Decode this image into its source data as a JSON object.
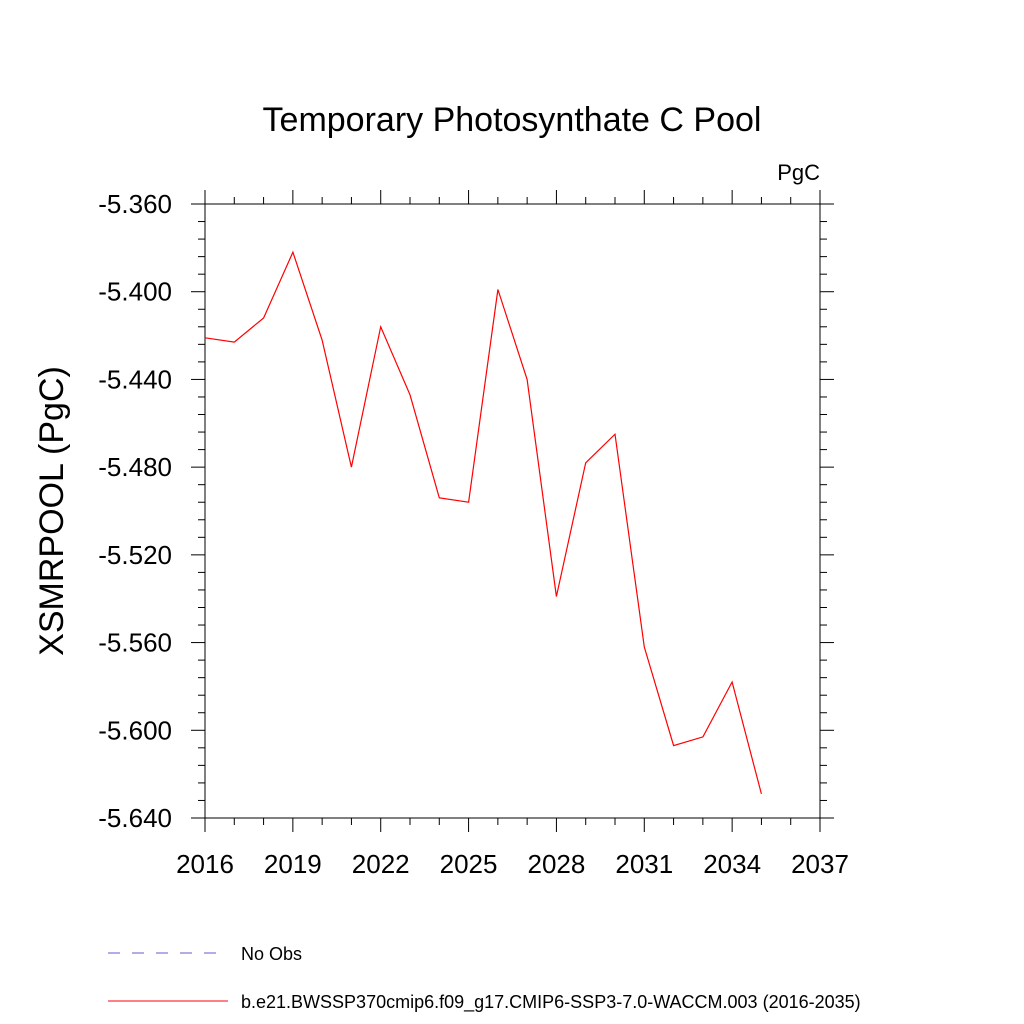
{
  "chart_data": {
    "type": "line",
    "title": "Temporary Photosynthate C Pool",
    "units": "PgC",
    "ylabel": "XSMRPOOL  (PgC)",
    "xlabel": "",
    "xlim": [
      2016,
      2037
    ],
    "ylim": [
      -5.64,
      -5.36
    ],
    "xticks": [
      "2016",
      "2019",
      "2022",
      "2025",
      "2028",
      "2031",
      "2034",
      "2037"
    ],
    "yticks": [
      "-5.360",
      "-5.400",
      "-5.440",
      "-5.480",
      "-5.520",
      "-5.560",
      "-5.600",
      "-5.640"
    ],
    "grid": false,
    "legend_position": "bottom-left",
    "series": [
      {
        "name": "b.e21.BWSSP370cmip6.f09_g17.CMIP6-SSP3-7.0-WACCM.003 (2016-2035)",
        "color": "#ff0000",
        "dash": "solid",
        "x": [
          2016,
          2017,
          2018,
          2019,
          2020,
          2021,
          2022,
          2023,
          2024,
          2025,
          2026,
          2027,
          2028,
          2029,
          2030,
          2031,
          2032,
          2033,
          2034,
          2035
        ],
        "y": [
          -5.421,
          -5.423,
          -5.412,
          -5.382,
          -5.422,
          -5.48,
          -5.416,
          -5.447,
          -5.494,
          -5.496,
          -5.399,
          -5.44,
          -5.539,
          -5.478,
          -5.465,
          -5.562,
          -5.607,
          -5.603,
          -5.578,
          -5.629
        ]
      }
    ],
    "legend": [
      {
        "label": "No Obs",
        "color": "#6a5acd",
        "dash": "dashed"
      },
      {
        "label": "b.e21.BWSSP370cmip6.f09_g17.CMIP6-SSP3-7.0-WACCM.003 (2016-2035)",
        "color": "#ff0000",
        "dash": "solid"
      }
    ]
  }
}
